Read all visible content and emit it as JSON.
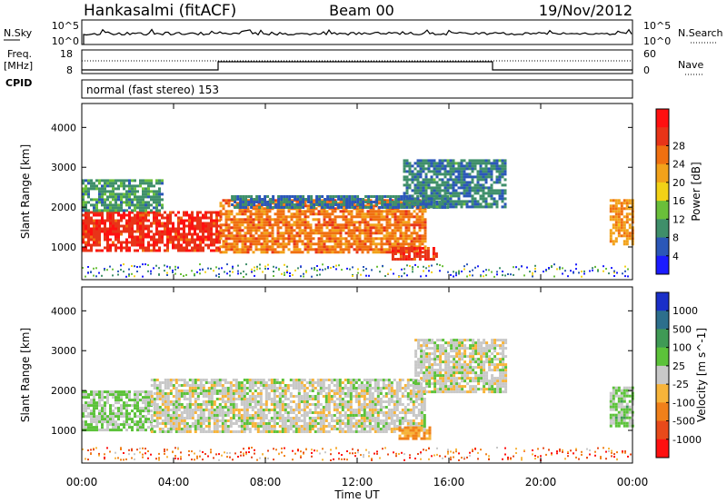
{
  "header": {
    "station": "Hankasalmi (fitACF)",
    "beam": "Beam 00",
    "date": "19/Nov/2012"
  },
  "summary_panels": {
    "nsky_label": "N.Sky",
    "nsky_ticks": [
      "10^5",
      "10^0"
    ],
    "nsearch_label": "N.Search",
    "nsearch_ticks": [
      "10^5",
      "10^0"
    ],
    "freq_label": "Freq.",
    "freq_unit": "[MHz]",
    "freq_ticks": [
      "18",
      "8"
    ],
    "nave_label": "Nave",
    "nave_ticks": [
      "60",
      "0"
    ],
    "cpid_label": "CPID",
    "cpid_text": "normal (fast stereo) 153"
  },
  "chart_data": {
    "type": "heatmap",
    "xlabel": "Time UT",
    "x_ticks": [
      "00:00",
      "04:00",
      "08:00",
      "12:00",
      "16:00",
      "20:00",
      "00:00"
    ],
    "xlim_hours": [
      0,
      24
    ],
    "ylabel": "Slant Range [km]",
    "y_ticks": [
      "1000",
      "2000",
      "3000",
      "4000"
    ],
    "ylim_km": [
      180,
      4600
    ],
    "power_panel": {
      "colorbar_label": "Power [dB]",
      "colorbar_ticks": [
        "4",
        "8",
        "12",
        "16",
        "20",
        "24",
        "28"
      ],
      "colorscale": [
        "#1b1bff",
        "#2b57b8",
        "#3f8f6a",
        "#6abf3a",
        "#f2d216",
        "#f2a21a",
        "#f07010",
        "#e83418",
        "#ff1010"
      ],
      "regions": [
        {
          "t0": 0.0,
          "t1": 6.0,
          "r0": 900,
          "r1": 1900,
          "value_db": 26
        },
        {
          "t0": 0.0,
          "t1": 3.5,
          "r0": 1900,
          "r1": 2700,
          "value_db": 10
        },
        {
          "t0": 6.0,
          "t1": 15.0,
          "r0": 900,
          "r1": 2200,
          "value_db": 22
        },
        {
          "t0": 6.5,
          "t1": 16.0,
          "r0": 2000,
          "r1": 2300,
          "value_db": 8
        },
        {
          "t0": 13.5,
          "t1": 15.5,
          "r0": 700,
          "r1": 1000,
          "value_db": 26
        },
        {
          "t0": 14.0,
          "t1": 18.5,
          "r0": 2000,
          "r1": 3200,
          "value_db": 9
        },
        {
          "t0": 23.0,
          "t1": 24.0,
          "r0": 1100,
          "r1": 2200,
          "value_db": 20
        }
      ]
    },
    "velocity_panel": {
      "colorbar_label": "Velocity [m s^-1]",
      "colorbar_ticks": [
        "1000",
        "500",
        "100",
        "25",
        "-25",
        "-100",
        "-500",
        "-1000"
      ],
      "colorscale": [
        "#1a2fc8",
        "#2d6f8c",
        "#3f9a55",
        "#5cc23a",
        "#c8c8c8",
        "#f7b43a",
        "#f0801a",
        "#e84a1a",
        "#ff1010"
      ],
      "regions": [
        {
          "t0": 0.0,
          "t1": 3.0,
          "r0": 1000,
          "r1": 2000,
          "value_ms": 150
        },
        {
          "t0": 3.0,
          "t1": 15.0,
          "r0": 1000,
          "r1": 2300,
          "value_ms": 0
        },
        {
          "t0": 13.8,
          "t1": 15.2,
          "r0": 800,
          "r1": 1100,
          "value_ms": -400
        },
        {
          "t0": 14.5,
          "t1": 18.5,
          "r0": 2000,
          "r1": 3300,
          "value_ms": 0
        },
        {
          "t0": 23.0,
          "t1": 24.0,
          "r0": 1100,
          "r1": 2100,
          "value_ms": 200
        }
      ]
    }
  }
}
